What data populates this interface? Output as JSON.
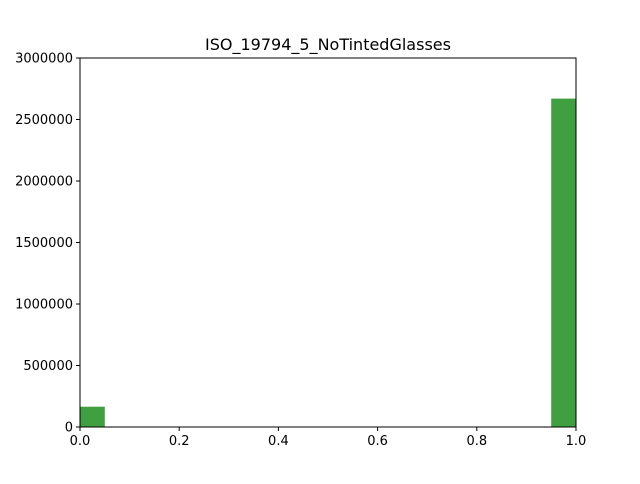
{
  "chart_data": {
    "type": "bar",
    "title": "ISO_19794_5_NoTintedGlasses",
    "xlabel": "",
    "ylabel": "",
    "xlim": [
      0,
      1
    ],
    "ylim": [
      0,
      3000000
    ],
    "grid": false,
    "x_ticks": [
      {
        "value": 0.0,
        "label": "0.0"
      },
      {
        "value": 0.2,
        "label": "0.2"
      },
      {
        "value": 0.4,
        "label": "0.4"
      },
      {
        "value": 0.6,
        "label": "0.6"
      },
      {
        "value": 0.8,
        "label": "0.8"
      },
      {
        "value": 1.0,
        "label": "1.0"
      }
    ],
    "y_ticks": [
      {
        "value": 0,
        "label": "0"
      },
      {
        "value": 500000,
        "label": "500000"
      },
      {
        "value": 1000000,
        "label": "1000000"
      },
      {
        "value": 1500000,
        "label": "1500000"
      },
      {
        "value": 2000000,
        "label": "2000000"
      },
      {
        "value": 2500000,
        "label": "2500000"
      },
      {
        "value": 3000000,
        "label": "3000000"
      }
    ],
    "bins": [
      {
        "x0": 0.0,
        "x1": 0.05,
        "count": 165000
      },
      {
        "x0": 0.95,
        "x1": 1.0,
        "count": 2670000
      }
    ],
    "bar_color": "#409f40"
  }
}
